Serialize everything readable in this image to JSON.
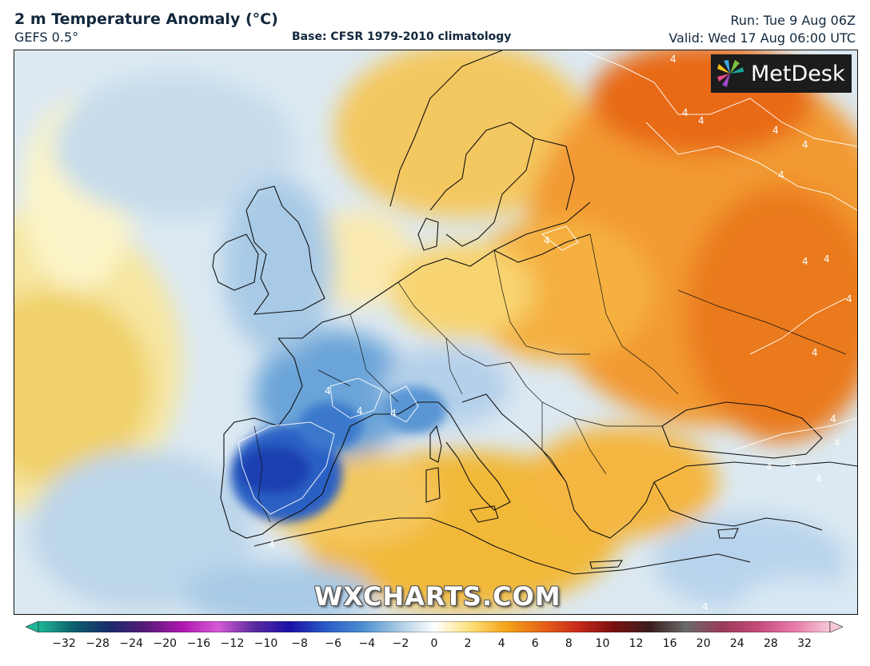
{
  "header": {
    "title": "2 m Temperature Anomaly (°C)",
    "model": "GEFS 0.5°",
    "base": "Base: CFSR 1979-2010 climatology",
    "run": "Run: Tue 9 Aug 06Z",
    "valid": "Valid: Wed 17 Aug 06:00 UTC"
  },
  "logo": {
    "text": "MetDesk",
    "icon": "metdesk-pinwheel-icon"
  },
  "watermark": "WXCHARTS.COM",
  "contour_label": "4",
  "colorbar": {
    "min": -32,
    "max": 32,
    "ticks": [
      "−32",
      "−28",
      "−24",
      "−20",
      "−16",
      "−12",
      "−10",
      "−8",
      "−6",
      "−4",
      "−2",
      "0",
      "2",
      "4",
      "6",
      "8",
      "10",
      "12",
      "16",
      "20",
      "24",
      "28",
      "32"
    ],
    "colors": {
      "minus32": "#1fb89a",
      "minus28": "#0b5d6b",
      "minus24": "#1a2a6b",
      "minus20": "#5a1a7a",
      "minus16": "#b016b0",
      "minus12": "#d45ad4",
      "minus10": "#5a2aa0",
      "minus8": "#1a10a8",
      "minus6": "#2a5cc8",
      "minus4": "#4a8ed0",
      "minus2": "#a8cae4",
      "zero": "#ffffff",
      "plus2": "#fde07a",
      "plus4": "#f4a418",
      "plus6": "#e86418",
      "plus8": "#c8281a",
      "plus10": "#7a1010",
      "plus12": "#3a1e1e",
      "plus16": "#6a6a6a",
      "plus20": "#9a3a5a",
      "plus24": "#c44a7a",
      "plus28": "#e87aa8",
      "plus32": "#f6c8d8"
    }
  }
}
